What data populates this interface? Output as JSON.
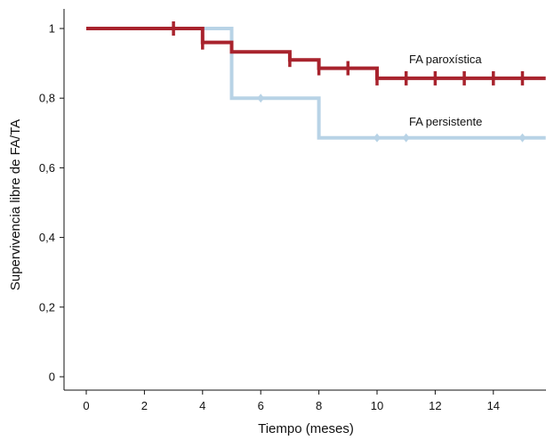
{
  "chart_data": {
    "type": "line",
    "xlabel": "Tiempo (meses)",
    "ylabel": "Supervivencia libre de FA/TA",
    "xlim": [
      0,
      15.8
    ],
    "ylim": [
      0,
      1
    ],
    "x_ticks": [
      0,
      2,
      4,
      6,
      8,
      10,
      12,
      14
    ],
    "x_tick_labels": [
      "0",
      "2",
      "4",
      "6",
      "8",
      "10",
      "12",
      "14"
    ],
    "y_ticks": [
      0,
      0.2,
      0.4,
      0.6,
      0.8,
      1
    ],
    "y_tick_labels": [
      "0",
      "0,2",
      "0,4",
      "0,6",
      "0,8",
      "1"
    ],
    "grid": false,
    "series": [
      {
        "name": "FA persistente",
        "color": "#b8d3e6",
        "marker": "diamond",
        "steps": [
          [
            0,
            1
          ],
          [
            5,
            0.8
          ],
          [
            8,
            0.686
          ],
          [
            15.8,
            0.686
          ]
        ],
        "censored": [
          [
            6,
            0.8
          ],
          [
            10,
            0.686
          ],
          [
            11,
            0.686
          ],
          [
            15,
            0.686
          ]
        ]
      },
      {
        "name": "FA paroxística",
        "color": "#a8232d",
        "marker": "cross",
        "steps": [
          [
            0,
            1
          ],
          [
            4,
            0.96
          ],
          [
            5,
            0.933
          ],
          [
            7,
            0.91
          ],
          [
            8,
            0.886
          ],
          [
            10,
            0.857
          ],
          [
            15.8,
            0.857
          ]
        ],
        "censored": [
          [
            3,
            1
          ],
          [
            4,
            0.96
          ],
          [
            7,
            0.91
          ],
          [
            8,
            0.886
          ],
          [
            9,
            0.886
          ],
          [
            10,
            0.857
          ],
          [
            11,
            0.857
          ],
          [
            12,
            0.857
          ],
          [
            13,
            0.857
          ],
          [
            14,
            0.857
          ],
          [
            15,
            0.857
          ]
        ]
      }
    ],
    "annotations": [
      {
        "text": "FA paroxística",
        "x": 11.1,
        "y": 0.9,
        "series": 1
      },
      {
        "text": "FA persistente",
        "x": 11.1,
        "y": 0.721,
        "series": 0
      }
    ]
  }
}
